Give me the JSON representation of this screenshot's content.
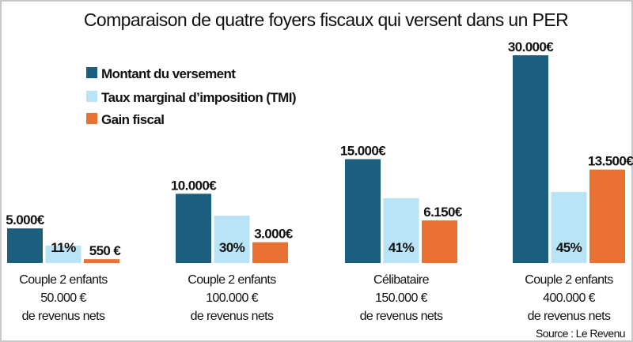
{
  "chart_data": {
    "type": "bar",
    "title": "Comparaison de quatre foyers fiscaux qui versent dans un PER",
    "categories": [
      [
        "Couple 2 enfants",
        "50.000 €",
        "de revenus nets"
      ],
      [
        "Couple 2 enfants",
        "100.000 €",
        "de revenus nets"
      ],
      [
        "Célibataire",
        "150.000 €",
        "de revenus nets"
      ],
      [
        "Couple 2 enfants",
        "400.000 €",
        "de revenus nets"
      ]
    ],
    "series": [
      {
        "name": "Montant du versement",
        "color": "#1b5e7e",
        "unit": "€",
        "values": [
          5000,
          10000,
          15000,
          30000
        ],
        "labels": [
          "5.000€",
          "10.000€",
          "15.000€",
          "30.000€"
        ]
      },
      {
        "name": "Taux marginal d’imposition (TMI)",
        "color": "#b9e4f6",
        "unit": "%",
        "values": [
          11,
          30,
          41,
          45
        ],
        "labels": [
          "11%",
          "30%",
          "41%",
          "45%"
        ]
      },
      {
        "name": "Gain fiscal",
        "color": "#e97232",
        "unit": "€",
        "values": [
          550,
          3000,
          6150,
          13500
        ],
        "labels": [
          "550 €",
          "3.000€",
          "6.150€",
          "13.500€"
        ]
      }
    ],
    "legend": "top-left",
    "grid": false,
    "source": "Source : Le Revenu"
  }
}
